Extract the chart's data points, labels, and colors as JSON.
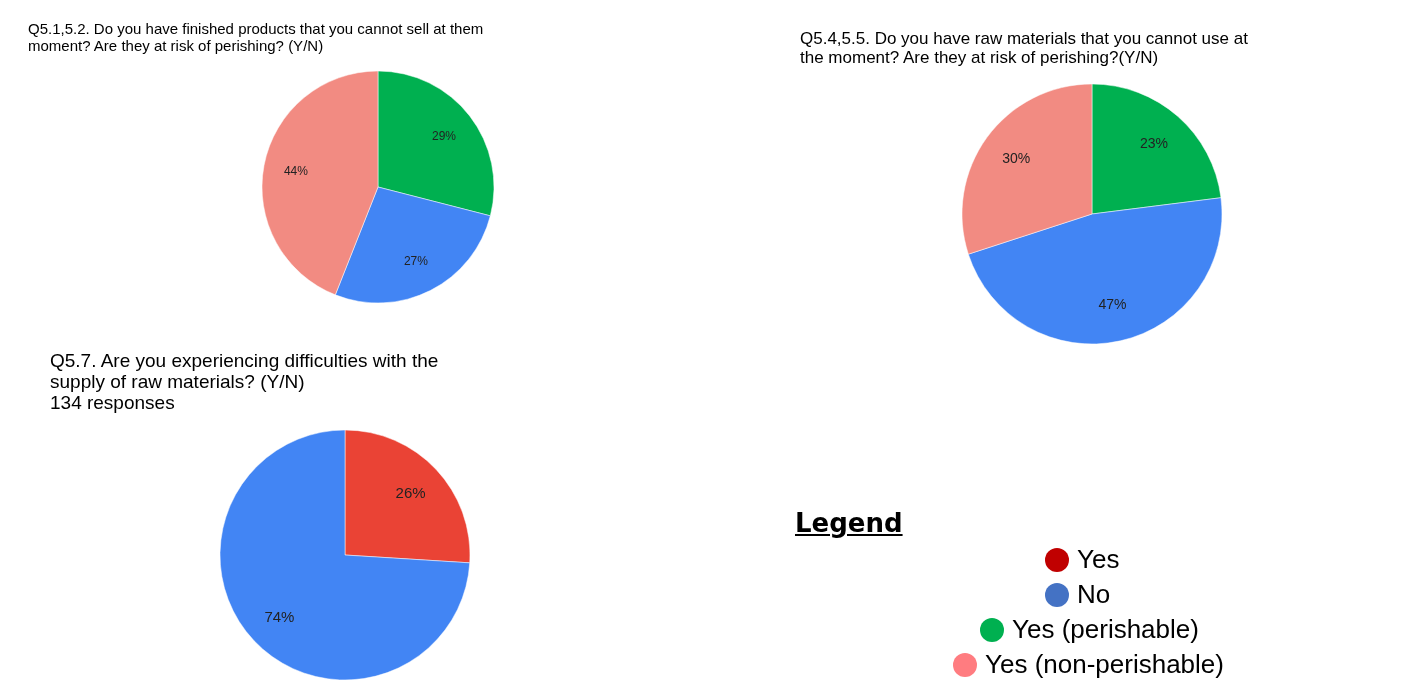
{
  "chart_data": [
    {
      "type": "pie",
      "title": "Q5.1,5.2. Do you have finished products that you cannot sell at them moment? Are they at risk of perishing? (Y/N)",
      "values": [
        29,
        27,
        44
      ],
      "colors": [
        "#00b050",
        "#4285f4",
        "#f28b82"
      ],
      "value_labels": [
        "29%",
        "27%",
        "44%"
      ]
    },
    {
      "type": "pie",
      "title": "Q5.4,5.5. Do you have raw materials that you cannot use at the moment?  Are they at risk of perishing?(Y/N)",
      "values": [
        23,
        47,
        30
      ],
      "colors": [
        "#00b050",
        "#4285f4",
        "#f28b82"
      ],
      "value_labels": [
        "23%",
        "47%",
        "30%"
      ]
    },
    {
      "type": "pie",
      "title": "Q5.7. Are you experiencing difficulties with the supply of raw materials? (Y/N)",
      "subtitle": "134 responses",
      "values": [
        26,
        74
      ],
      "colors": [
        "#ea4335",
        "#4285f4"
      ],
      "value_labels": [
        "26%",
        "74%"
      ]
    },
    {
      "type": "other",
      "legend_title": "Legend",
      "categories": [
        "Yes",
        "No",
        "Yes (perishable)",
        "Yes (non-perishable)"
      ],
      "colors": [
        "#c00000",
        "#4472c4",
        "#00b050",
        "#ff7c80"
      ]
    }
  ]
}
